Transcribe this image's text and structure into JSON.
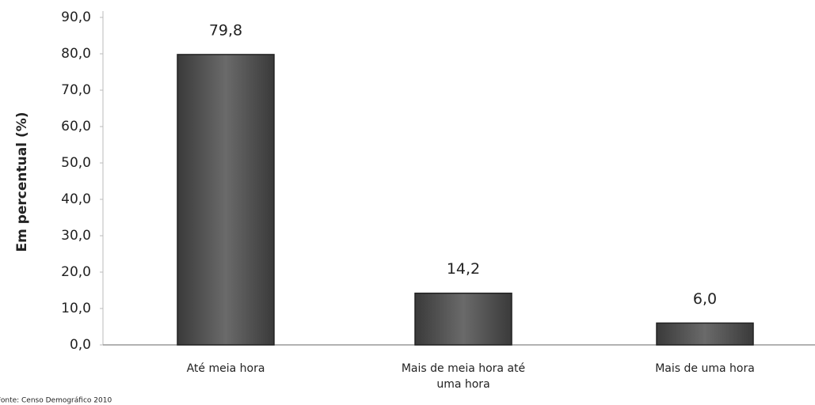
{
  "chart_data": {
    "type": "bar",
    "y_label": "Em percentual (%)",
    "source": "Fonte: Censo Demográfico 2010",
    "categories": [
      "Até meia hora",
      "Mais de meia hora até uma hora",
      "Mais de uma hora"
    ],
    "values": [
      79.8,
      14.2,
      6.0
    ],
    "value_labels": [
      "79,8",
      "14,2",
      "6,0"
    ],
    "color": "#555555",
    "ylim": [
      0,
      90
    ],
    "yticks": [
      {
        "value": 0,
        "label": "0,0"
      },
      {
        "value": 10,
        "label": "10,0"
      },
      {
        "value": 20,
        "label": "20,0"
      },
      {
        "value": 30,
        "label": "30,0"
      },
      {
        "value": 40,
        "label": "40,0"
      },
      {
        "value": 50,
        "label": "50,0"
      },
      {
        "value": 60,
        "label": "60,0"
      },
      {
        "value": 70,
        "label": "70,0"
      },
      {
        "value": 80,
        "label": "80,0"
      },
      {
        "value": 90,
        "label": "90,0"
      }
    ],
    "grid": false
  }
}
